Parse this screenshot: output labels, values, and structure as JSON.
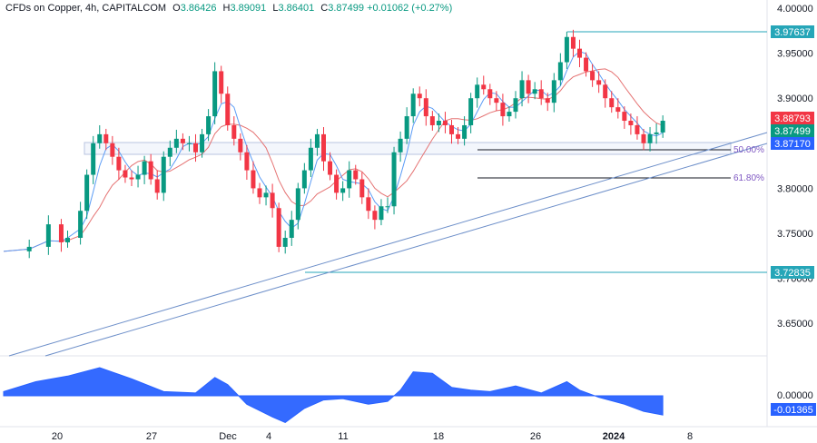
{
  "header": {
    "symbol": "CFDs on Copper, 4h, CAPITALCOM",
    "o_label": "O",
    "o_value": "3.86426",
    "h_label": "H",
    "h_value": "3.89091",
    "l_label": "L",
    "l_value": "3.86401",
    "c_label": "C",
    "c_value": "3.87499",
    "change": "+0.01062 (+0.27%)"
  },
  "colors": {
    "up": "#089981",
    "down": "#f23645",
    "sma_fast": "#5b9cf6",
    "sma_slow": "#e57373",
    "trend": "#6d8fc9",
    "level": "#26a6b8",
    "range": "#b8c4e0",
    "osc": "#2962ff"
  },
  "badges": {
    "high_level": "3.97637",
    "sma": "3.88793",
    "last": "3.87499",
    "prior": "3.87170",
    "low_level": "3.72835",
    "osc_value": "-0.01365"
  },
  "fib": {
    "level_50": "50.00%",
    "level_618": "61.80%"
  },
  "chart_data": {
    "type": "line",
    "price_axis": {
      "ylim": [
        3.62,
        4.0
      ],
      "ticks": [
        "4.00000",
        "3.95000",
        "3.90000",
        "3.85000",
        "3.80000",
        "3.75000",
        "3.70000",
        "3.65000"
      ]
    },
    "osc_axis": {
      "ticks": [
        "0.00000"
      ]
    },
    "x_ticks": [
      "20",
      "27",
      "Dec",
      "4",
      "11",
      "18",
      "26",
      "2024",
      "8"
    ],
    "price_path": [
      [
        0,
        3.73
      ],
      [
        4,
        3.735
      ],
      [
        7,
        3.76
      ],
      [
        9,
        3.74
      ],
      [
        10,
        3.745
      ],
      [
        12,
        3.775
      ],
      [
        13,
        3.815
      ],
      [
        14,
        3.85
      ],
      [
        15,
        3.86
      ],
      [
        16,
        3.85
      ],
      [
        17,
        3.835
      ],
      [
        18,
        3.82
      ],
      [
        19,
        3.812
      ],
      [
        20,
        3.81
      ],
      [
        21,
        3.815
      ],
      [
        22,
        3.83
      ],
      [
        23,
        3.81
      ],
      [
        24,
        3.795
      ],
      [
        25,
        3.835
      ],
      [
        26,
        3.845
      ],
      [
        27,
        3.855
      ],
      [
        28,
        3.85
      ],
      [
        29,
        3.85
      ],
      [
        30,
        3.84
      ],
      [
        31,
        3.86
      ],
      [
        32,
        3.88
      ],
      [
        33,
        3.93
      ],
      [
        34,
        3.905
      ],
      [
        35,
        3.87
      ],
      [
        36,
        3.855
      ],
      [
        37,
        3.84
      ],
      [
        38,
        3.82
      ],
      [
        39,
        3.8
      ],
      [
        40,
        3.79
      ],
      [
        41,
        3.795
      ],
      [
        42,
        3.778
      ],
      [
        43,
        3.735
      ],
      [
        44,
        3.745
      ],
      [
        45,
        3.765
      ],
      [
        46,
        3.8
      ],
      [
        47,
        3.82
      ],
      [
        48,
        3.845
      ],
      [
        49,
        3.86
      ],
      [
        50,
        3.83
      ],
      [
        51,
        3.815
      ],
      [
        52,
        3.795
      ],
      [
        53,
        3.8
      ],
      [
        54,
        3.82
      ],
      [
        55,
        3.81
      ],
      [
        56,
        3.79
      ],
      [
        57,
        3.775
      ],
      [
        58,
        3.765
      ],
      [
        59,
        3.78
      ],
      [
        60,
        3.78
      ],
      [
        61,
        3.84
      ],
      [
        62,
        3.855
      ],
      [
        63,
        3.88
      ],
      [
        64,
        3.905
      ],
      [
        65,
        3.9
      ],
      [
        66,
        3.88
      ],
      [
        67,
        3.87
      ],
      [
        68,
        3.875
      ],
      [
        69,
        3.87
      ],
      [
        70,
        3.86
      ],
      [
        71,
        3.855
      ],
      [
        72,
        3.87
      ],
      [
        73,
        3.9
      ],
      [
        74,
        3.915
      ],
      [
        75,
        3.91
      ],
      [
        76,
        3.9
      ],
      [
        77,
        3.895
      ],
      [
        78,
        3.88
      ],
      [
        79,
        3.885
      ],
      [
        80,
        3.9
      ],
      [
        81,
        3.92
      ],
      [
        82,
        3.905
      ],
      [
        83,
        3.91
      ],
      [
        84,
        3.9
      ],
      [
        85,
        3.895
      ],
      [
        86,
        3.92
      ],
      [
        87,
        3.94
      ],
      [
        88,
        3.968
      ],
      [
        89,
        3.955
      ],
      [
        90,
        3.945
      ],
      [
        91,
        3.93
      ],
      [
        92,
        3.92
      ],
      [
        93,
        3.915
      ],
      [
        94,
        3.9
      ],
      [
        95,
        3.89
      ],
      [
        96,
        3.885
      ],
      [
        97,
        3.875
      ],
      [
        98,
        3.87
      ],
      [
        99,
        3.86
      ],
      [
        100,
        3.85
      ],
      [
        101,
        3.86
      ],
      [
        102,
        3.862
      ],
      [
        103,
        3.875
      ]
    ],
    "osc_path": [
      [
        0,
        0.003
      ],
      [
        5,
        0.01
      ],
      [
        10,
        0.014
      ],
      [
        15,
        0.02
      ],
      [
        20,
        0.012
      ],
      [
        25,
        0.003
      ],
      [
        30,
        0.002
      ],
      [
        33,
        0.013
      ],
      [
        35,
        0.008
      ],
      [
        38,
        -0.006
      ],
      [
        42,
        -0.015
      ],
      [
        44,
        -0.019
      ],
      [
        47,
        -0.009
      ],
      [
        50,
        -0.003
      ],
      [
        53,
        -0.002
      ],
      [
        57,
        -0.006
      ],
      [
        60,
        -0.004
      ],
      [
        62,
        0.004
      ],
      [
        64,
        0.017
      ],
      [
        67,
        0.016
      ],
      [
        70,
        0.006
      ],
      [
        73,
        0.004
      ],
      [
        76,
        0.003
      ],
      [
        80,
        0.007
      ],
      [
        84,
        0.002
      ],
      [
        88,
        0.01
      ],
      [
        90,
        0.004
      ],
      [
        93,
        -0.001
      ],
      [
        97,
        -0.006
      ],
      [
        100,
        -0.011
      ],
      [
        103,
        -0.01365
      ]
    ]
  }
}
